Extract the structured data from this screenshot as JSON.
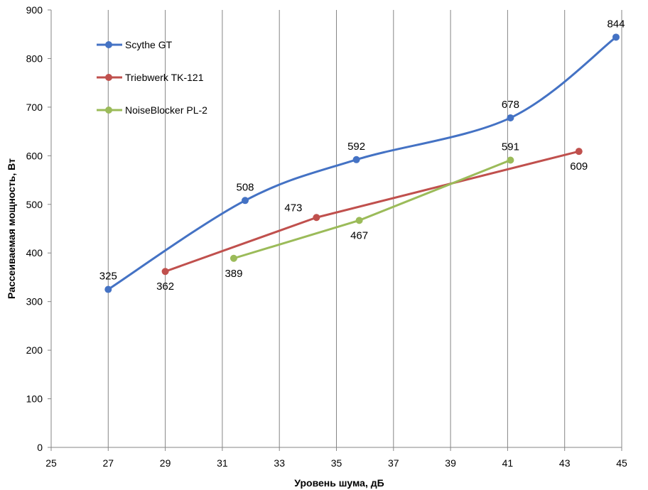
{
  "chart_data": {
    "type": "line",
    "title": "",
    "xlabel": "Уровень шума, дБ",
    "ylabel": "Рассеиваемая мощность, Вт",
    "xlim": [
      25,
      45
    ],
    "ylim": [
      0,
      900
    ],
    "x_ticks": [
      25,
      27,
      29,
      31,
      33,
      35,
      37,
      39,
      41,
      43,
      45
    ],
    "y_ticks": [
      0,
      100,
      200,
      300,
      400,
      500,
      600,
      700,
      800,
      900
    ],
    "grid": "vertical",
    "legend_position": "top-left",
    "series": [
      {
        "name": "Scythe GT",
        "color": "#4472c4",
        "smooth": true,
        "points": [
          {
            "x": 27.0,
            "y": 325,
            "label": "325",
            "label_pos": "above"
          },
          {
            "x": 31.8,
            "y": 508,
            "label": "508",
            "label_pos": "above"
          },
          {
            "x": 35.7,
            "y": 592,
            "label": "592",
            "label_pos": "above"
          },
          {
            "x": 41.1,
            "y": 678,
            "label": "678",
            "label_pos": "above"
          },
          {
            "x": 44.8,
            "y": 844,
            "label": "844",
            "label_pos": "above"
          }
        ]
      },
      {
        "name": "Triebwerk TK-121",
        "color": "#c0504d",
        "smooth": false,
        "points": [
          {
            "x": 29.0,
            "y": 362,
            "label": "362",
            "label_pos": "below"
          },
          {
            "x": 34.3,
            "y": 473,
            "label": "473",
            "label_pos": "left"
          },
          {
            "x": 43.5,
            "y": 609,
            "label": "609",
            "label_pos": "below"
          }
        ]
      },
      {
        "name": "NoiseBlocker PL-2",
        "color": "#9bbb59",
        "smooth": false,
        "points": [
          {
            "x": 31.4,
            "y": 389,
            "label": "389",
            "label_pos": "below"
          },
          {
            "x": 35.8,
            "y": 467,
            "label": "467",
            "label_pos": "below"
          },
          {
            "x": 41.1,
            "y": 591,
            "label": "591",
            "label_pos": "above"
          }
        ]
      }
    ]
  }
}
